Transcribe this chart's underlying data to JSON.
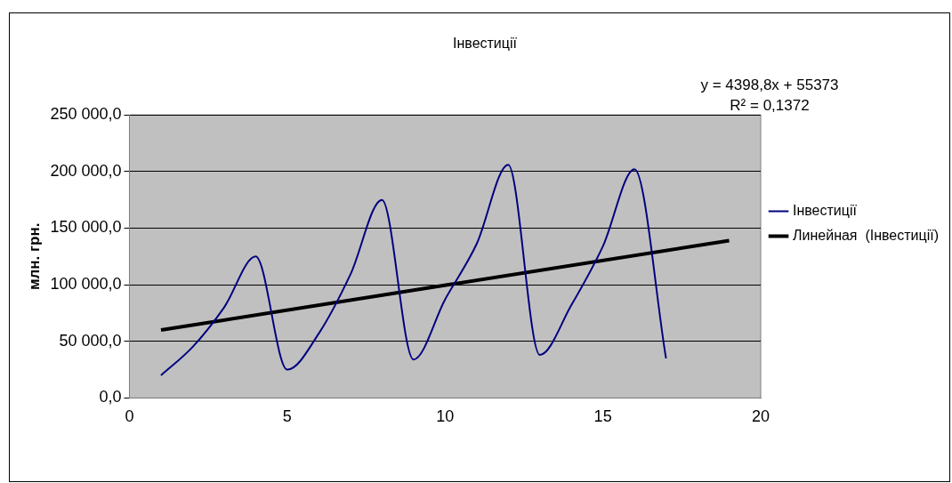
{
  "chart_data": {
    "type": "line",
    "title": "Інвестиції",
    "ylabel": "млн. грн.",
    "x": [
      1,
      2,
      3,
      4,
      5,
      6,
      7,
      8,
      9,
      10,
      11,
      12,
      13,
      14,
      15,
      16,
      17
    ],
    "series": [
      {
        "name": "Інвестиції",
        "color": "#000080",
        "values": [
          20000,
          45000,
          80000,
          125000,
          25000,
          57000,
          109000,
          175000,
          34000,
          87000,
          136000,
          206000,
          38000,
          82000,
          134000,
          202000,
          35000
        ]
      },
      {
        "name": "Линейная  (Інвестиції)",
        "type": "line",
        "color": "#000000",
        "x": [
          1,
          19
        ],
        "values": [
          60000,
          139000
        ]
      }
    ],
    "xlim": [
      0,
      20
    ],
    "xticks": [
      0,
      5,
      10,
      15,
      20
    ],
    "ylim": [
      0,
      250000
    ],
    "yticks": [
      {
        "value": 0,
        "label": "0,0"
      },
      {
        "value": 50000,
        "label": "50 000,0"
      },
      {
        "value": 100000,
        "label": "100 000,0"
      },
      {
        "value": 150000,
        "label": "150 000,0"
      },
      {
        "value": 200000,
        "label": "200 000,0"
      },
      {
        "value": 250000,
        "label": "250 000,0"
      }
    ],
    "grid": "y",
    "legend": "right",
    "marker": "none",
    "line_style": "solid",
    "annotations": [
      "y = 4398,8x + 55373",
      "R² = 0,1372"
    ]
  }
}
